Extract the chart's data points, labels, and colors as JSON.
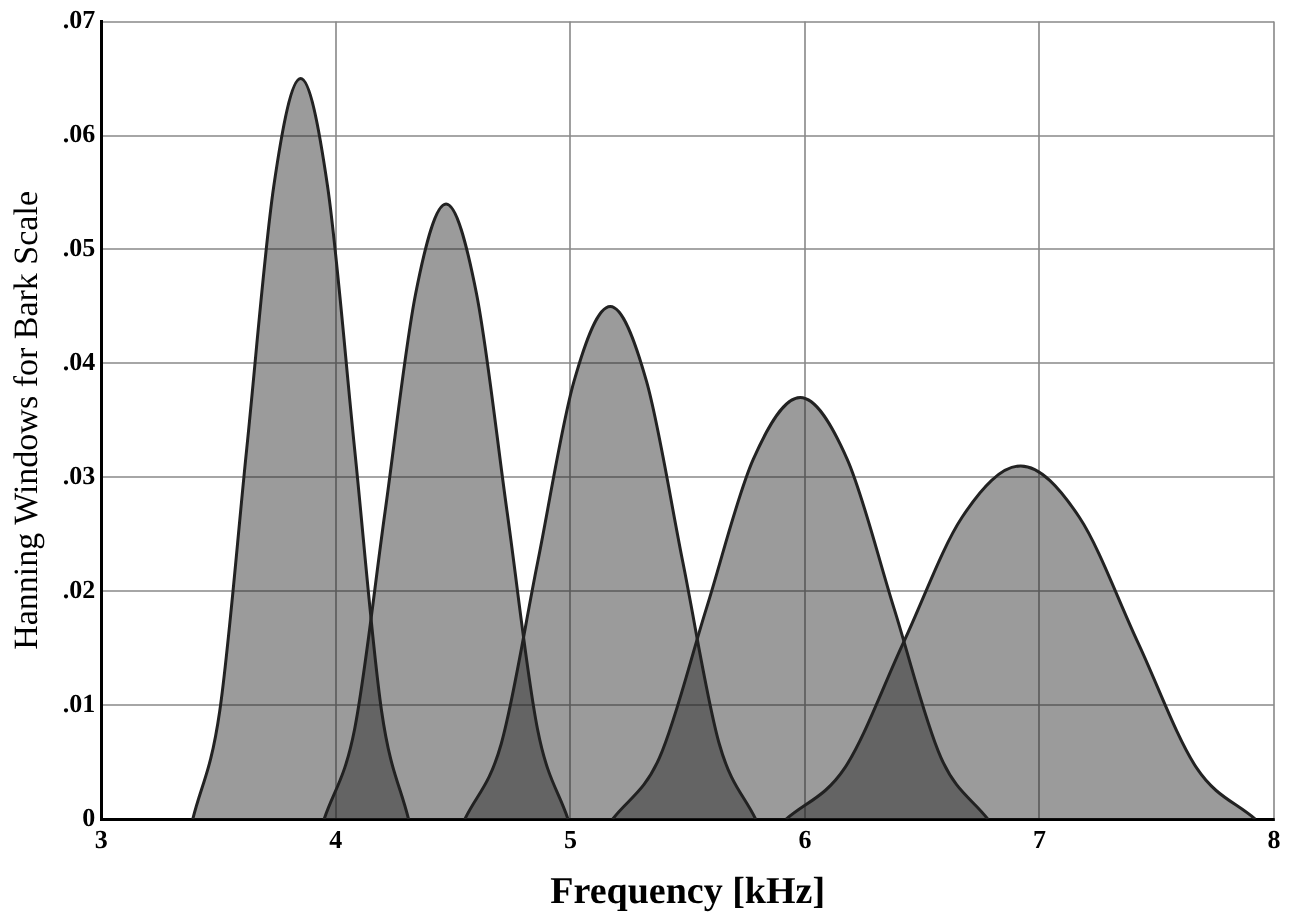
{
  "chart_data": {
    "type": "area",
    "xlabel": "Frequency [kHz]",
    "ylabel": "Hanning Windows for Bark Scale",
    "xlim": [
      3,
      8
    ],
    "xticks": [
      3,
      4,
      5,
      6,
      7,
      8
    ],
    "ylim": [
      0,
      0.07
    ],
    "yticks": [
      0,
      {
        "value": 0.01,
        "label": ".01"
      },
      {
        "value": 0.02,
        "label": ".02"
      },
      {
        "value": 0.03,
        "label": ".03"
      },
      {
        "value": 0.04,
        "label": ".04"
      },
      {
        "value": 0.05,
        "label": ".05"
      },
      {
        "value": 0.06,
        "label": ".06"
      },
      {
        "value": 0.07,
        "label": ".07"
      }
    ],
    "grid": true,
    "legend": false,
    "line_style": "solid",
    "marker": "none",
    "series": [
      {
        "color": "#222222",
        "x": [
          3.39,
          3.505,
          3.62,
          3.735,
          3.85,
          3.965,
          4.08,
          4.195,
          4.31
        ],
        "values": [
          0,
          0.0095,
          0.0325,
          0.0555,
          0.065,
          0.0555,
          0.0325,
          0.0095,
          0
        ]
      },
      {
        "color": "#222222",
        "x": [
          3.95,
          4.08,
          4.21,
          4.34,
          4.47,
          4.6,
          4.73,
          4.86,
          4.99
        ],
        "values": [
          0,
          0.0079,
          0.027,
          0.0461,
          0.054,
          0.0461,
          0.027,
          0.0079,
          0
        ]
      },
      {
        "color": "#222222",
        "x": [
          4.55,
          4.705,
          4.86,
          5.015,
          5.17,
          5.325,
          5.48,
          5.635,
          5.79
        ],
        "values": [
          0,
          0.0066,
          0.0225,
          0.0384,
          0.045,
          0.0384,
          0.0225,
          0.0066,
          0
        ]
      },
      {
        "color": "#222222",
        "x": [
          5.18,
          5.38,
          5.58,
          5.78,
          5.98,
          6.18,
          6.38,
          6.58,
          6.78
        ],
        "values": [
          0,
          0.0054,
          0.0185,
          0.0316,
          0.037,
          0.0316,
          0.0185,
          0.0054,
          0
        ]
      },
      {
        "color": "#222222",
        "x": [
          5.92,
          6.17,
          6.42,
          6.67,
          6.92,
          7.17,
          7.42,
          7.67,
          7.92
        ],
        "values": [
          0,
          0.0045,
          0.0155,
          0.0265,
          0.031,
          0.0265,
          0.0155,
          0.0045,
          0
        ]
      }
    ]
  }
}
